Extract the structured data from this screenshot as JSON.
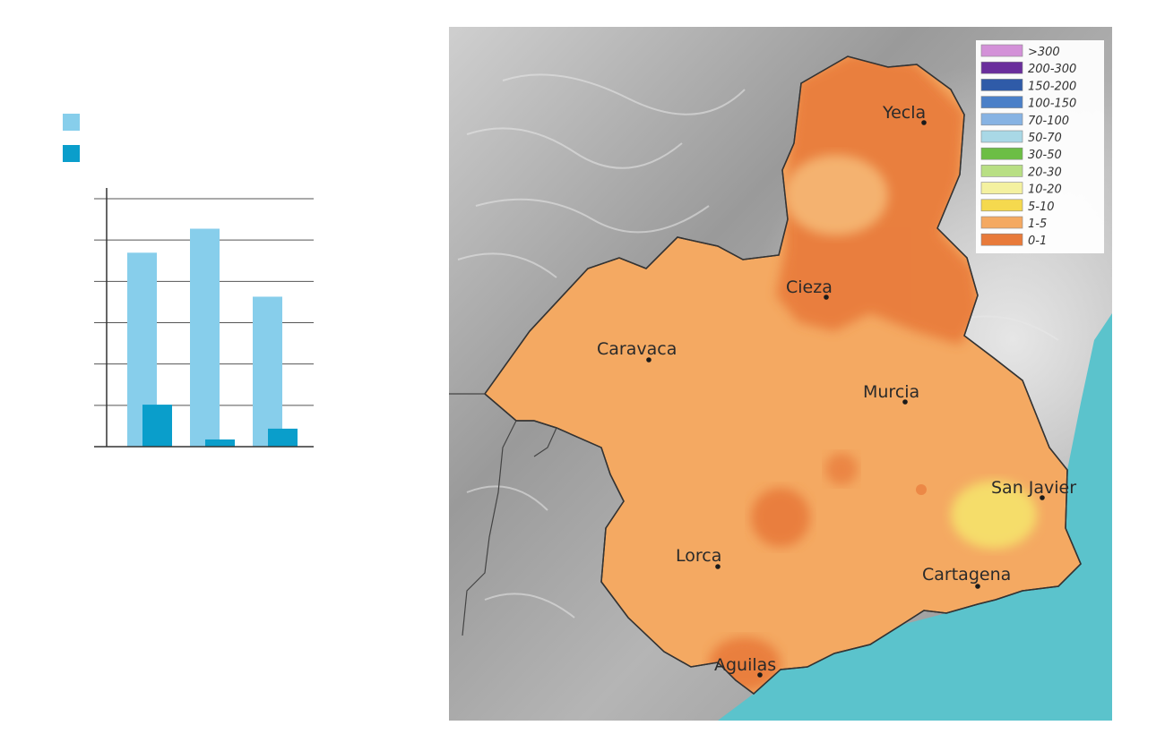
{
  "chart_data": {
    "type": "bar",
    "categories": [
      "",
      "",
      ""
    ],
    "series": [
      {
        "color": "#87ceeb",
        "values": [
          4.85,
          5.45,
          3.75
        ]
      },
      {
        "color": "#0a9ecb",
        "values": [
          1.05,
          0.18,
          0.45
        ]
      }
    ],
    "ylim": [
      0,
      6.2
    ],
    "grid": true,
    "gridlines": 6,
    "legend": "top-left"
  },
  "map": {
    "sea_color": "#5bc3cc",
    "land_color": "#f4a962",
    "legend": [
      {
        "label": ">300",
        "color": "#d391d8"
      },
      {
        "label": "200-300",
        "color": "#6a2e9c"
      },
      {
        "label": "150-200",
        "color": "#2f5ba8"
      },
      {
        "label": "100-150",
        "color": "#4b80c8"
      },
      {
        "label": "70-100",
        "color": "#87b3e3"
      },
      {
        "label": "50-70",
        "color": "#a9d8e6"
      },
      {
        "label": "30-50",
        "color": "#6cbe45"
      },
      {
        "label": "20-30",
        "color": "#b8df84"
      },
      {
        "label": "10-20",
        "color": "#f4f1a0"
      },
      {
        "label": "5-10",
        "color": "#f5d94e"
      },
      {
        "label": "1-5",
        "color": "#f4a962"
      },
      {
        "label": "0-1",
        "color": "#e87a3a"
      }
    ],
    "cities": [
      {
        "name": "Yecla"
      },
      {
        "name": "Cieza"
      },
      {
        "name": "Caravaca"
      },
      {
        "name": "Murcia"
      },
      {
        "name": "San Javier"
      },
      {
        "name": "Lorca"
      },
      {
        "name": "Cartagena"
      },
      {
        "name": "Aguilas"
      }
    ]
  }
}
